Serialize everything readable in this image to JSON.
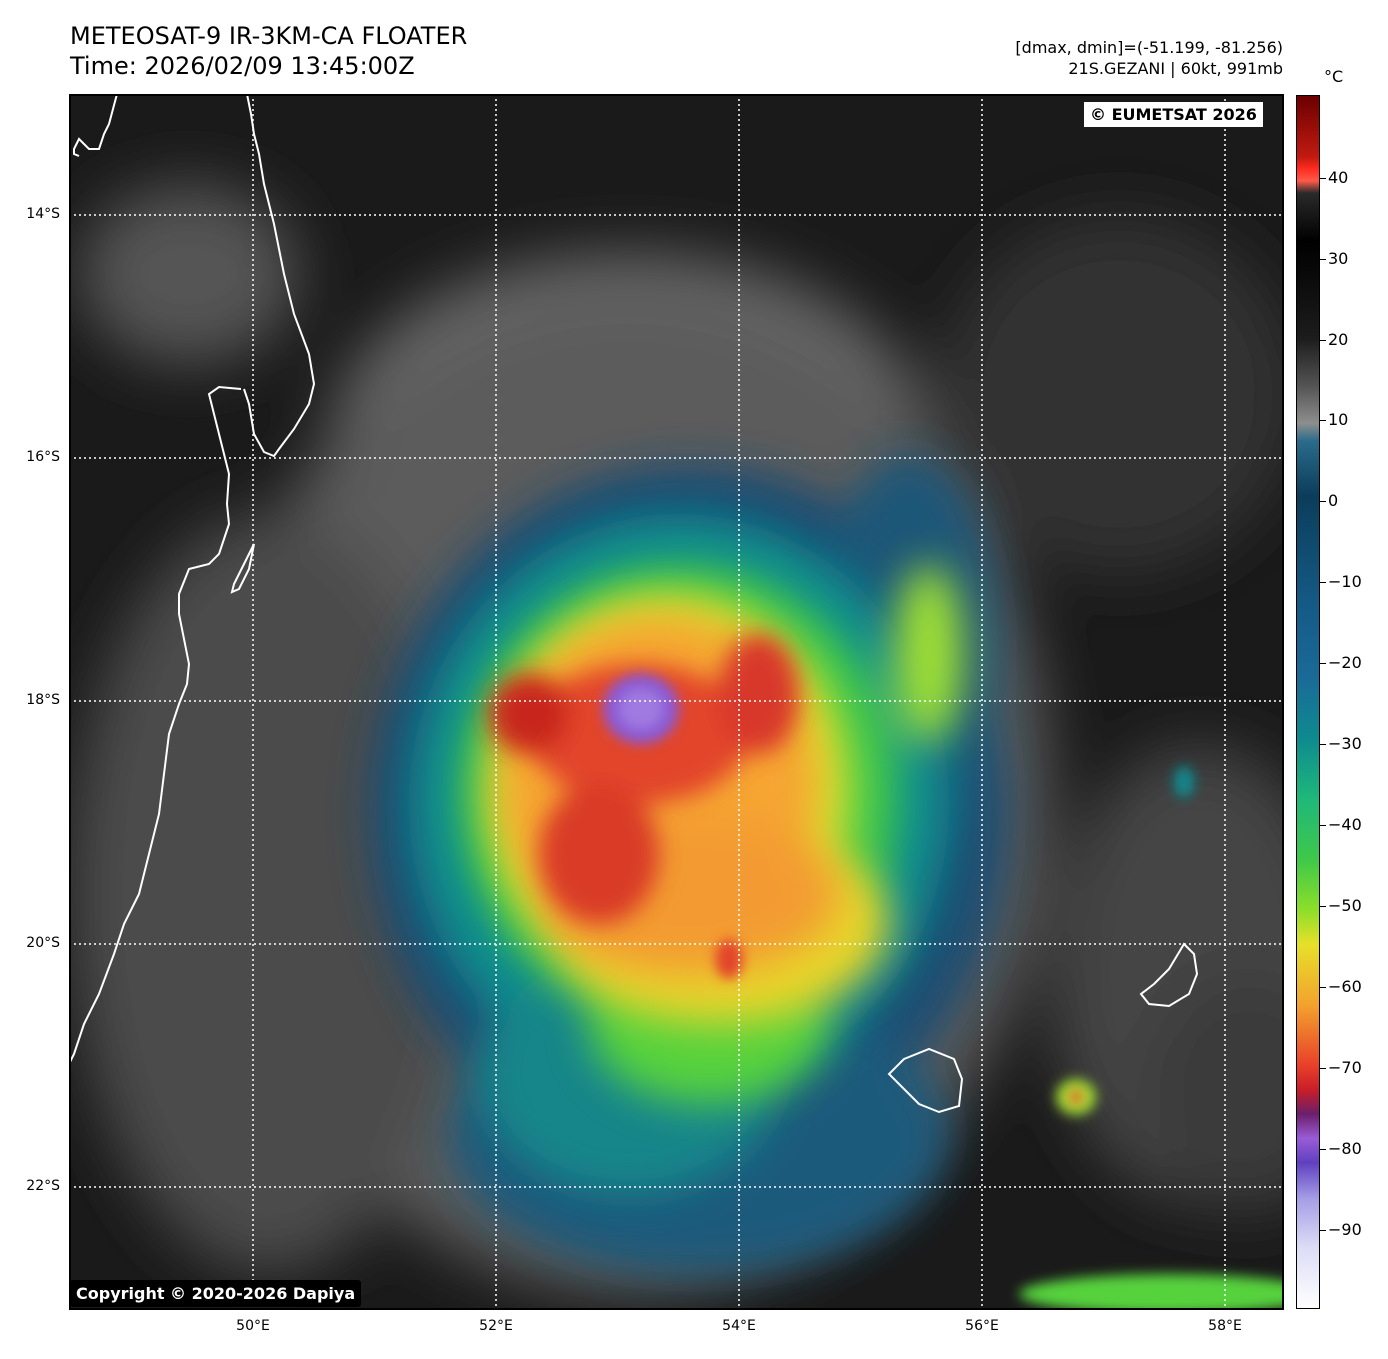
{
  "header": {
    "title_line1": "METEOSAT-9 IR-3KM-CA FLOATER",
    "title_line2": "Time: 2026/02/09 13:45:00Z",
    "info_line1": "[dmax, dmin]=(-51.199, -81.256)",
    "info_line2": "21S.GEZANI | 60kt, 991mb"
  },
  "map": {
    "lon_range": [
      48.5,
      58.5
    ],
    "lat_range": [
      -23.0,
      -13.0
    ],
    "lat_labels": [
      "14°S",
      "16°S",
      "18°S",
      "20°S",
      "22°S"
    ],
    "lon_labels": [
      "50°E",
      "52°E",
      "54°E",
      "56°E",
      "58°E"
    ],
    "gridlines": "dotted white",
    "storm": {
      "name": "21S.GEZANI",
      "center_lon": 53.1,
      "center_lat": -18.05,
      "coldest_cloud_top_c": -81.256,
      "warmest_cloud_top_c": -51.199
    }
  },
  "badges": {
    "eumetsat": "© EUMETSAT 2026",
    "copyright": "Copyright © 2020-2026 Dapiya"
  },
  "colorbar": {
    "unit": "°C",
    "range": [
      -100,
      50
    ],
    "labels": [
      "40",
      "30",
      "20",
      "10",
      "0",
      "−10",
      "−20",
      "−30",
      "−40",
      "−50",
      "−60",
      "−70",
      "−80",
      "−90"
    ]
  }
}
